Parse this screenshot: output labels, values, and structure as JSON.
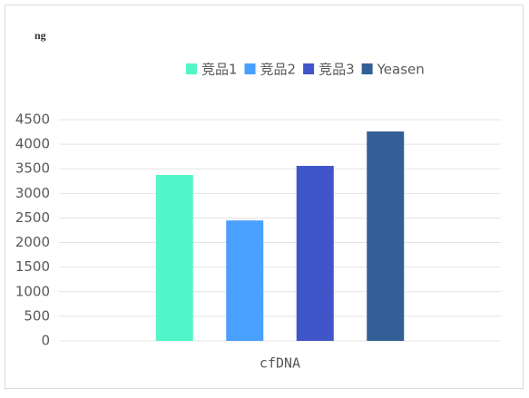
{
  "chart_data": {
    "type": "bar",
    "y_label": "ng",
    "categories": [
      "cfDNA"
    ],
    "series": [
      {
        "name": "竞品1",
        "color": "#52f5c8",
        "values": [
          3375
        ]
      },
      {
        "name": "竞品2",
        "color": "#4aa0ff",
        "values": [
          2450
        ]
      },
      {
        "name": "竞品3",
        "color": "#3f55c8",
        "values": [
          3560
        ]
      },
      {
        "name": "Yeasen",
        "color": "#345f96",
        "values": [
          4260
        ]
      }
    ],
    "ylim": [
      0,
      4500
    ],
    "yticks": [
      0,
      500,
      1000,
      1500,
      2000,
      2500,
      3000,
      3500,
      4000,
      4500
    ],
    "grid": true,
    "legend": "top"
  }
}
